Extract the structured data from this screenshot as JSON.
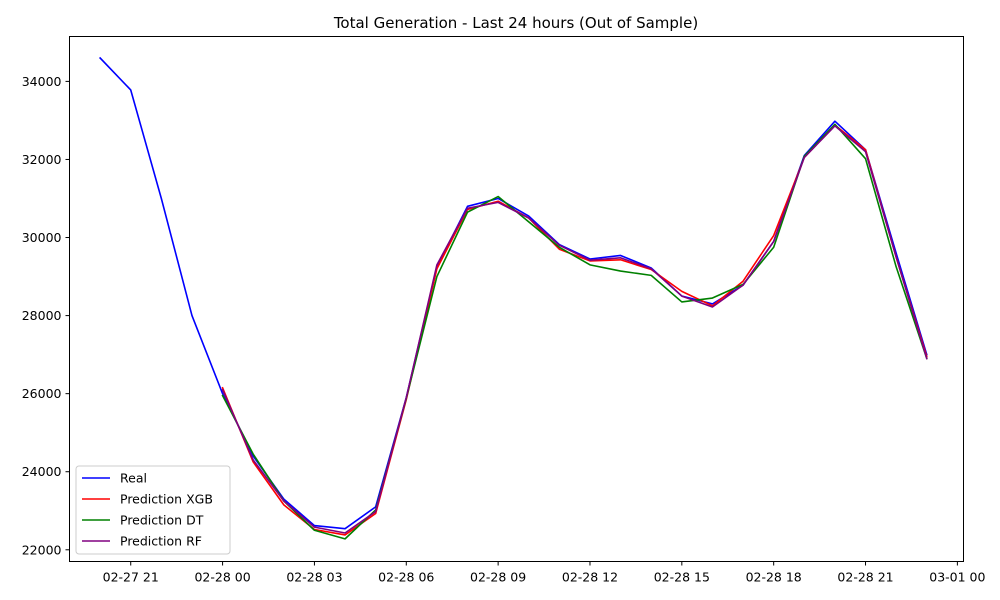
{
  "chart_data": {
    "type": "line",
    "title": "Total Generation - Last 24 hours (Out of Sample)",
    "xlabel": "",
    "ylabel": "",
    "x_ticks": [
      "02-27 21",
      "02-28 00",
      "02-28 03",
      "02-28 06",
      "02-28 09",
      "02-28 12",
      "02-28 15",
      "02-28 18",
      "02-28 21",
      "03-01 00"
    ],
    "y_ticks": [
      "22000",
      "24000",
      "26000",
      "28000",
      "30000",
      "32000",
      "34000"
    ],
    "xlim": [
      "2026-02-27 19:00",
      "2026-03-01 00:12"
    ],
    "ylim": [
      21700,
      35150
    ],
    "grid": false,
    "legend_position": "lower left",
    "series": [
      {
        "name": "Real",
        "color": "#0000ff",
        "points": [
          [
            "2026-02-27 20:00",
            34600
          ],
          [
            "2026-02-27 21:00",
            33780
          ],
          [
            "2026-02-27 22:00",
            31000
          ],
          [
            "2026-02-27 23:00",
            28000
          ],
          [
            "2026-02-28 00:00",
            26000
          ],
          [
            "2026-02-28 01:00",
            24400
          ],
          [
            "2026-02-28 02:00",
            23300
          ],
          [
            "2026-02-28 03:00",
            22620
          ],
          [
            "2026-02-28 04:00",
            22540
          ],
          [
            "2026-02-28 05:00",
            23100
          ],
          [
            "2026-02-28 06:00",
            25900
          ],
          [
            "2026-02-28 07:00",
            29250
          ],
          [
            "2026-02-28 08:00",
            30800
          ],
          [
            "2026-02-28 09:00",
            31000
          ],
          [
            "2026-02-28 10:00",
            30550
          ],
          [
            "2026-02-28 11:00",
            29820
          ],
          [
            "2026-02-28 12:00",
            29450
          ],
          [
            "2026-02-28 13:00",
            29540
          ],
          [
            "2026-02-28 14:00",
            29220
          ],
          [
            "2026-02-28 15:00",
            28500
          ],
          [
            "2026-02-28 16:00",
            28300
          ],
          [
            "2026-02-28 17:00",
            28780
          ],
          [
            "2026-02-28 18:00",
            29900
          ],
          [
            "2026-02-28 19:00",
            32100
          ],
          [
            "2026-02-28 20:00",
            32980
          ],
          [
            "2026-02-28 21:00",
            32250
          ],
          [
            "2026-02-28 22:00",
            29600
          ],
          [
            "2026-02-28 23:00",
            27000
          ]
        ]
      },
      {
        "name": "Prediction XGB",
        "color": "#ff0000",
        "points": [
          [
            "2026-02-28 00:00",
            26150
          ],
          [
            "2026-02-28 01:00",
            24250
          ],
          [
            "2026-02-28 02:00",
            23150
          ],
          [
            "2026-02-28 03:00",
            22520
          ],
          [
            "2026-02-28 04:00",
            22380
          ],
          [
            "2026-02-28 05:00",
            22930
          ],
          [
            "2026-02-28 06:00",
            25850
          ],
          [
            "2026-02-28 07:00",
            29200
          ],
          [
            "2026-02-28 08:00",
            30720
          ],
          [
            "2026-02-28 09:00",
            30930
          ],
          [
            "2026-02-28 10:00",
            30500
          ],
          [
            "2026-02-28 11:00",
            29700
          ],
          [
            "2026-02-28 12:00",
            29400
          ],
          [
            "2026-02-28 13:00",
            29430
          ],
          [
            "2026-02-28 14:00",
            29180
          ],
          [
            "2026-02-28 15:00",
            28620
          ],
          [
            "2026-02-28 16:00",
            28250
          ],
          [
            "2026-02-28 17:00",
            28880
          ],
          [
            "2026-02-28 18:00",
            30050
          ],
          [
            "2026-02-28 19:00",
            32050
          ],
          [
            "2026-02-28 20:00",
            32880
          ],
          [
            "2026-02-28 21:00",
            32250
          ],
          [
            "2026-02-28 22:00",
            29500
          ],
          [
            "2026-02-28 23:00",
            26950
          ]
        ]
      },
      {
        "name": "Prediction DT",
        "color": "#008000",
        "points": [
          [
            "2026-02-28 00:00",
            25950
          ],
          [
            "2026-02-28 01:00",
            24450
          ],
          [
            "2026-02-28 02:00",
            23250
          ],
          [
            "2026-02-28 03:00",
            22500
          ],
          [
            "2026-02-28 04:00",
            22280
          ],
          [
            "2026-02-28 05:00",
            23020
          ],
          [
            "2026-02-28 06:00",
            25880
          ],
          [
            "2026-02-28 07:00",
            29000
          ],
          [
            "2026-02-28 08:00",
            30650
          ],
          [
            "2026-02-28 09:00",
            31050
          ],
          [
            "2026-02-28 10:00",
            30400
          ],
          [
            "2026-02-28 11:00",
            29750
          ],
          [
            "2026-02-28 12:00",
            29300
          ],
          [
            "2026-02-28 13:00",
            29140
          ],
          [
            "2026-02-28 14:00",
            29030
          ],
          [
            "2026-02-28 15:00",
            28350
          ],
          [
            "2026-02-28 16:00",
            28450
          ],
          [
            "2026-02-28 17:00",
            28800
          ],
          [
            "2026-02-28 18:00",
            29750
          ],
          [
            "2026-02-28 19:00",
            32080
          ],
          [
            "2026-02-28 20:00",
            32900
          ],
          [
            "2026-02-28 21:00",
            32020
          ],
          [
            "2026-02-28 22:00",
            29250
          ],
          [
            "2026-02-28 23:00",
            26900
          ]
        ]
      },
      {
        "name": "Prediction RF",
        "color": "#800080",
        "points": [
          [
            "2026-02-28 00:00",
            26100
          ],
          [
            "2026-02-28 01:00",
            24300
          ],
          [
            "2026-02-28 02:00",
            23250
          ],
          [
            "2026-02-28 03:00",
            22580
          ],
          [
            "2026-02-28 04:00",
            22430
          ],
          [
            "2026-02-28 05:00",
            22980
          ],
          [
            "2026-02-28 06:00",
            25900
          ],
          [
            "2026-02-28 07:00",
            29300
          ],
          [
            "2026-02-28 08:00",
            30750
          ],
          [
            "2026-02-28 09:00",
            30900
          ],
          [
            "2026-02-28 10:00",
            30500
          ],
          [
            "2026-02-28 11:00",
            29800
          ],
          [
            "2026-02-28 12:00",
            29420
          ],
          [
            "2026-02-28 13:00",
            29480
          ],
          [
            "2026-02-28 14:00",
            29200
          ],
          [
            "2026-02-28 15:00",
            28500
          ],
          [
            "2026-02-28 16:00",
            28220
          ],
          [
            "2026-02-28 17:00",
            28780
          ],
          [
            "2026-02-28 18:00",
            29900
          ],
          [
            "2026-02-28 19:00",
            32050
          ],
          [
            "2026-02-28 20:00",
            32860
          ],
          [
            "2026-02-28 21:00",
            32200
          ],
          [
            "2026-02-28 22:00",
            29500
          ],
          [
            "2026-02-28 23:00",
            26900
          ]
        ]
      }
    ]
  }
}
